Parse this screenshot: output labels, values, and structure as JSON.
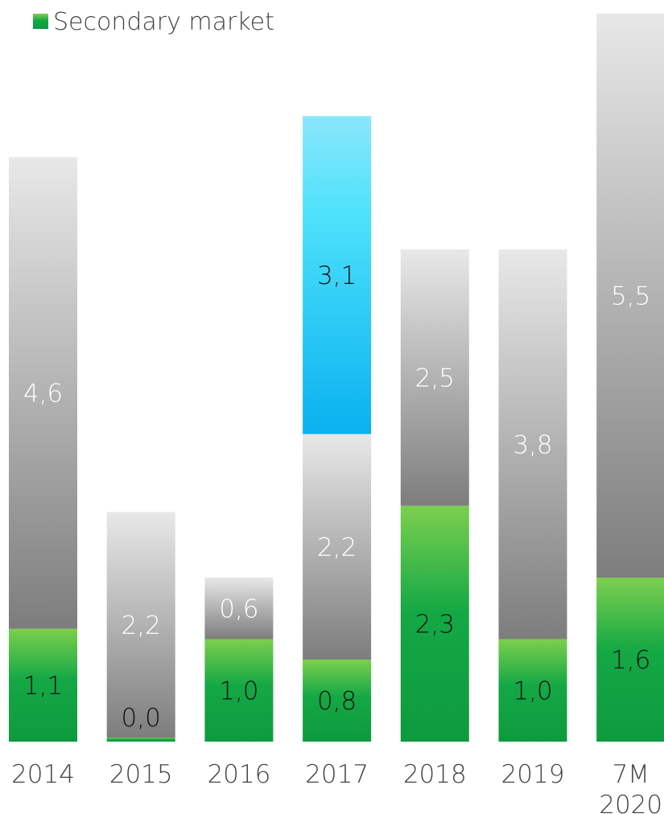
{
  "legend": {
    "label": "Secondary market",
    "color": "#1ea34a"
  },
  "colors": {
    "secondary_top": "#7ccf4e",
    "secondary_bottom": "#0e9a3e",
    "gray_top": "#e8e8e8",
    "gray_bottom": "#7d7d7d",
    "blue_top": "#8be6fb",
    "blue_mid": "#4fe2fb",
    "blue_bottom": "#09b1ef"
  },
  "chart_data": {
    "type": "bar",
    "stacked": true,
    "categories": [
      "2014",
      "2015",
      "2016",
      "2017",
      "2018",
      "2019",
      "7M 2020"
    ],
    "series": [
      {
        "name": "Secondary market",
        "color": "green",
        "values": [
          1.1,
          0.0,
          1.0,
          0.8,
          2.3,
          1.0,
          1.6
        ],
        "labels": [
          "1,1",
          "0,0",
          "1,0",
          "0,8",
          "2,3",
          "1,0",
          "1,6"
        ]
      },
      {
        "color": "gray",
        "values": [
          4.6,
          2.2,
          0.6,
          2.2,
          2.5,
          3.8,
          5.5
        ],
        "labels": [
          "4,6",
          "2,2",
          "0,6",
          "2,2",
          "2,5",
          "3,8",
          "5,5"
        ]
      },
      {
        "color": "blue",
        "values": [
          0,
          0,
          0,
          3.1,
          0,
          0,
          0
        ],
        "labels": [
          "",
          "",
          "",
          "3,1",
          "",
          "",
          ""
        ]
      }
    ],
    "legend_position": "top-left",
    "grid": false,
    "axis_visible": false
  }
}
